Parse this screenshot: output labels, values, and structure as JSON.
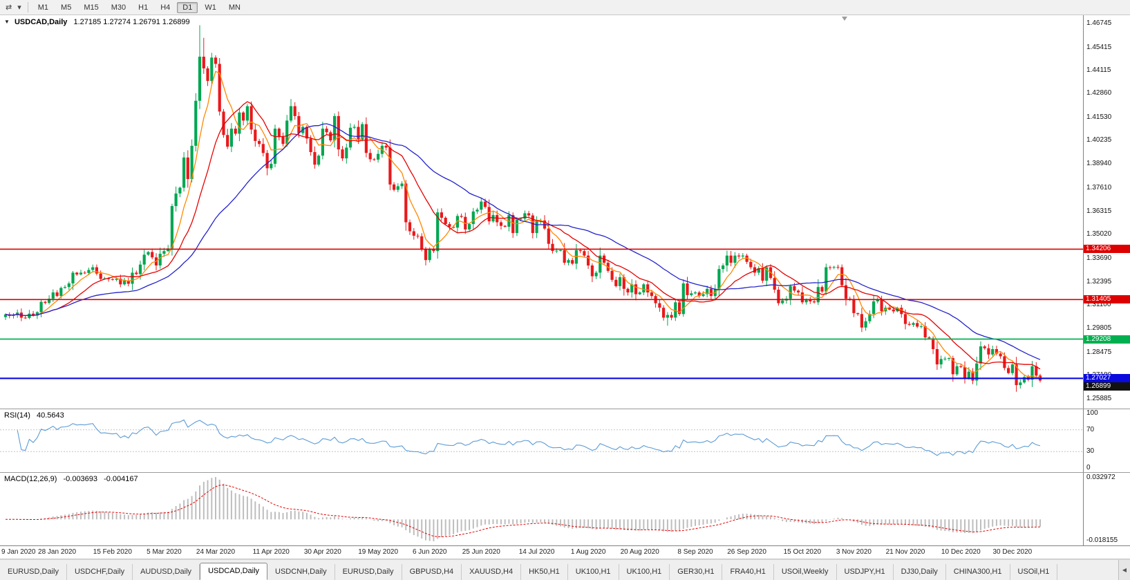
{
  "toolbar": {
    "icons": [
      {
        "name": "chart-shift-icon",
        "glyph": "⇄"
      },
      {
        "name": "dropdown-caret-icon",
        "glyph": "▾"
      }
    ],
    "timeframes": [
      "M1",
      "M5",
      "M15",
      "M30",
      "H1",
      "H4",
      "D1",
      "W1",
      "MN"
    ],
    "active_timeframe": "D1"
  },
  "chart_data": {
    "type": "candlestick",
    "title": {
      "symbol": "USDCAD,Daily",
      "open": "1.27185",
      "high": "1.27274",
      "low": "1.26791",
      "close": "1.26899"
    },
    "one_click_glyph": "▼",
    "ylim": [
      1.25885,
      1.46745
    ],
    "y_ticks": [
      "1.46745",
      "1.45415",
      "1.44115",
      "1.42860",
      "1.41530",
      "1.40235",
      "1.38940",
      "1.37610",
      "1.36315",
      "1.35020",
      "1.33690",
      "1.32395",
      "1.31100",
      "1.29805",
      "1.28475",
      "1.27180",
      "1.25885"
    ],
    "x_labels": [
      "9 Jan 2020",
      "28 Jan 2020",
      "15 Feb 2020",
      "5 Mar 2020",
      "24 Mar 2020",
      "11 Apr 2020",
      "30 Apr 2020",
      "19 May 2020",
      "6 Jun 2020",
      "25 Jun 2020",
      "14 Jul 2020",
      "1 Aug 2020",
      "20 Aug 2020",
      "8 Sep 2020",
      "26 Sep 2020",
      "15 Oct 2020",
      "3 Nov 2020",
      "21 Nov 2020",
      "10 Dec 2020",
      "30 Dec 2020"
    ],
    "closes": [
      1.3058,
      1.305,
      1.3055,
      1.3068,
      1.304,
      1.3038,
      1.3062,
      1.3052,
      1.307,
      1.3128,
      1.3122,
      1.3145,
      1.318,
      1.316,
      1.3205,
      1.321,
      1.323,
      1.329,
      1.328,
      1.329,
      1.3288,
      1.3305,
      1.332,
      1.3285,
      1.3255,
      1.3258,
      1.3254,
      1.325,
      1.3256,
      1.3225,
      1.3245,
      1.3228,
      1.329,
      1.3282,
      1.3335,
      1.339,
      1.3405,
      1.3375,
      1.333,
      1.3395,
      1.341,
      1.3425,
      1.366,
      1.373,
      1.3762,
      1.393,
      1.381,
      1.3995,
      1.4245,
      1.449,
      1.4425,
      1.4355,
      1.4485,
      1.445,
      1.4185,
      1.4055,
      1.399,
      1.409,
      1.4062,
      1.418,
      1.4135,
      1.4215,
      1.4085,
      1.4022,
      1.4005,
      1.3955,
      1.387,
      1.3895,
      1.409,
      1.4045,
      1.4005,
      1.4135,
      1.4215,
      1.416,
      1.4065,
      1.41,
      1.4035,
      1.396,
      1.389,
      1.394,
      1.409,
      1.407,
      1.4025,
      1.416,
      1.3975,
      1.3925,
      1.3985,
      1.4095,
      1.41,
      1.403,
      1.4115,
      1.3955,
      1.392,
      1.3918,
      1.395,
      1.3995,
      1.3985,
      1.378,
      1.375,
      1.377,
      1.3785,
      1.357,
      1.352,
      1.3495,
      1.3492,
      1.342,
      1.336,
      1.342,
      1.341,
      1.3625,
      1.3595,
      1.356,
      1.3545,
      1.354,
      1.3605,
      1.36,
      1.353,
      1.356,
      1.363,
      1.364,
      1.3685,
      1.3655,
      1.3575,
      1.361,
      1.357,
      1.355,
      1.3545,
      1.361,
      1.351,
      1.3585,
      1.359,
      1.362,
      1.3608,
      1.351,
      1.3575,
      1.358,
      1.3535,
      1.345,
      1.341,
      1.3412,
      1.3415,
      1.3345,
      1.336,
      1.334,
      1.3415,
      1.341,
      1.3385,
      1.333,
      1.327,
      1.329,
      1.3385,
      1.3345,
      1.33,
      1.325,
      1.3215,
      1.3265,
      1.32,
      1.318,
      1.3225,
      1.317,
      1.318,
      1.3225,
      1.318,
      1.316,
      1.312,
      1.3095,
      1.304,
      1.3055,
      1.304,
      1.3125,
      1.306,
      1.323,
      1.3165,
      1.3175,
      1.318,
      1.316,
      1.317,
      1.32,
      1.316,
      1.32,
      1.331,
      1.333,
      1.3385,
      1.3345,
      1.3385,
      1.338,
      1.3385,
      1.335,
      1.332,
      1.329,
      1.3315,
      1.3245,
      1.332,
      1.326,
      1.3195,
      1.312,
      1.3135,
      1.3145,
      1.3215,
      1.319,
      1.318,
      1.3125,
      1.314,
      1.313,
      1.3125,
      1.321,
      1.3185,
      1.332,
      1.3318,
      1.3322,
      1.332,
      1.322,
      1.3145,
      1.314,
      1.3065,
      1.306,
      1.2985,
      1.302,
      1.306,
      1.313,
      1.314,
      1.3075,
      1.3095,
      1.3085,
      1.3075,
      1.3095,
      1.306,
      1.3005,
      1.3,
      1.301,
      1.299,
      1.2992,
      1.293,
      1.2925,
      1.2865,
      1.278,
      1.281,
      1.2812,
      1.2815,
      1.2725,
      1.277,
      1.2765,
      1.2705,
      1.274,
      1.269,
      1.2785,
      1.288,
      1.287,
      1.2835,
      1.2865,
      1.284,
      1.2825,
      1.276,
      1.2732,
      1.278,
      1.2665,
      1.268,
      1.271,
      1.2695,
      1.277,
      1.2718,
      1.269
    ],
    "wick_overrides": [
      {
        "i": 49,
        "h": 1.4665
      },
      {
        "i": 50,
        "h": 1.4595
      },
      {
        "i": 167,
        "l": 1.2995
      },
      {
        "i": 255,
        "l": 1.2628
      },
      {
        "i": 261,
        "o": 1.27185,
        "h": 1.27274,
        "l": 1.26791,
        "c": 1.26899
      }
    ],
    "hlines": [
      {
        "value": 1.34206,
        "label": "1.34206",
        "color": "#dd0000",
        "width": 1.6
      },
      {
        "value": 1.31405,
        "label": "1.31405",
        "color": "#dd0000",
        "width": 1.6
      },
      {
        "value": 1.29208,
        "label": "1.29208",
        "color": "#00b050",
        "width": 1.8
      },
      {
        "value": 1.27027,
        "label": "1.27027",
        "color": "#0a0adf",
        "width": 2.2
      }
    ],
    "bid": {
      "label": "1.26899",
      "value": 1.26899,
      "color": "#111111"
    },
    "colors": {
      "up": "#00a651",
      "down": "#e8191c",
      "background": "#ffffff"
    },
    "moving_averages": [
      {
        "period": 6,
        "color": "#ff8800"
      },
      {
        "period": 14,
        "color": "#e60000"
      },
      {
        "period": 34,
        "color": "#2222cc"
      }
    ],
    "indicators": {
      "rsi": {
        "name": "RSI(14)",
        "value": "40.5643",
        "period": 14,
        "levels": [
          100,
          70,
          30,
          0
        ],
        "dashed_levels": [
          70,
          30
        ],
        "line_color": "#5b9bd5"
      },
      "macd": {
        "name": "MACD(12,26,9)",
        "fast": 12,
        "slow": 26,
        "signal": 9,
        "value_main": "-0.003693",
        "value_signal": "-0.004167",
        "axis_top": "0.032972",
        "axis_bottom": "-0.018155",
        "hist_color": "#bdbdbd",
        "signal_color": "#e60000"
      }
    }
  },
  "tabs": {
    "scroll_icon_glyph": "◀",
    "items": [
      {
        "label": "EURUSD,Daily",
        "active": false
      },
      {
        "label": "USDCHF,Daily",
        "active": false
      },
      {
        "label": "AUDUSD,Daily",
        "active": false
      },
      {
        "label": "USDCAD,Daily",
        "active": true
      },
      {
        "label": "USDCNH,Daily",
        "active": false
      },
      {
        "label": "EURUSD,Daily",
        "active": false
      },
      {
        "label": "GBPUSD,H4",
        "active": false
      },
      {
        "label": "XAUUSD,H4",
        "active": false
      },
      {
        "label": "HK50,H1",
        "active": false
      },
      {
        "label": "UK100,H1",
        "active": false
      },
      {
        "label": "UK100,H1",
        "active": false
      },
      {
        "label": "GER30,H1",
        "active": false
      },
      {
        "label": "FRA40,H1",
        "active": false
      },
      {
        "label": "USOil,Weekly",
        "active": false
      },
      {
        "label": "USDJPY,H1",
        "active": false
      },
      {
        "label": "DJ30,Daily",
        "active": false
      },
      {
        "label": "CHINA300,H1",
        "active": false
      },
      {
        "label": "USOil,H1",
        "active": false
      }
    ]
  }
}
